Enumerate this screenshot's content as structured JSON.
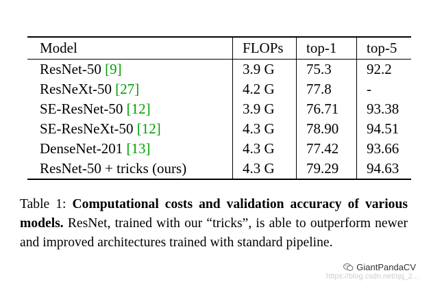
{
  "table": {
    "headers": {
      "model": "Model",
      "flops": "FLOPs",
      "top1": "top-1",
      "top5": "top-5"
    },
    "rows": [
      {
        "model": "ResNet-50 ",
        "cite": "[9]",
        "flops": "3.9 G",
        "top1": "75.3",
        "top5": "92.2"
      },
      {
        "model": "ResNeXt-50 ",
        "cite": "[27]",
        "flops": "4.2 G",
        "top1": "77.8",
        "top5": "-"
      },
      {
        "model": "SE-ResNet-50 ",
        "cite": "[12]",
        "flops": "3.9 G",
        "top1": "76.71",
        "top5": "93.38"
      },
      {
        "model": "SE-ResNeXt-50 ",
        "cite": "[12]",
        "flops": "4.3 G",
        "top1": "78.90",
        "top5": "94.51"
      },
      {
        "model": "DenseNet-201 ",
        "cite": "[13]",
        "flops": "4.3 G",
        "top1": "77.42",
        "top5": "93.66"
      },
      {
        "model": "ResNet-50 + tricks (ours)",
        "cite": "",
        "flops": "4.3 G",
        "top1": "79.29",
        "top5": "94.63"
      }
    ]
  },
  "caption": {
    "label": "Table 1: ",
    "bold": "Computational costs and validation accuracy of various models.",
    "rest": " ResNet, trained with our “tricks”, is able to outperform newer and improved architectures trained with standard pipeline."
  },
  "watermark": {
    "brand": "GiantPandaCV",
    "url": "https://blog.csdn.net/qq_2...",
    "icon": "wechat-icon"
  }
}
